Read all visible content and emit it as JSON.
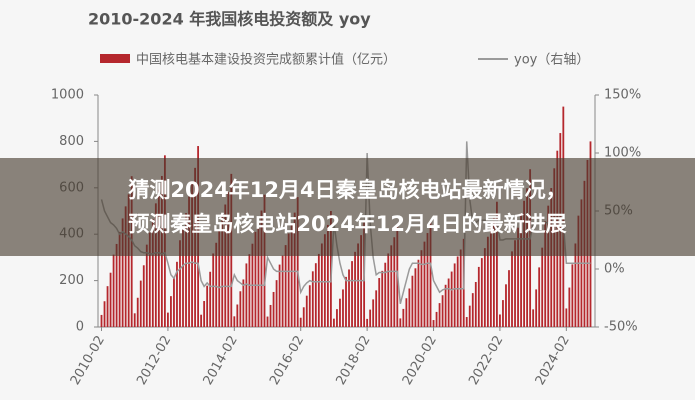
{
  "chart_data": {
    "type": "bar-line",
    "title": "2010-2024 年我国核电投资额及 yoy",
    "categories": [
      "2010-02",
      null,
      null,
      null,
      null,
      null,
      null,
      null,
      null,
      null,
      null,
      null,
      null,
      null,
      null,
      null,
      null,
      null,
      null,
      null,
      null,
      null,
      "2012-02",
      null,
      null,
      null,
      null,
      null,
      null,
      null,
      null,
      null,
      null,
      null,
      null,
      null,
      null,
      null,
      null,
      null,
      null,
      null,
      null,
      null,
      "2014-02",
      null,
      null,
      null,
      null,
      null,
      null,
      null,
      null,
      null,
      null,
      null,
      null,
      null,
      null,
      null,
      null,
      null,
      null,
      null,
      null,
      null,
      "2016-02",
      null,
      null,
      null,
      null,
      null,
      null,
      null,
      null,
      null,
      null,
      null,
      null,
      null,
      null,
      null,
      null,
      null,
      null,
      null,
      null,
      null,
      "2018-02",
      null,
      null,
      null,
      null,
      null,
      null,
      null,
      null,
      null,
      null,
      null,
      null,
      null,
      null,
      null,
      null,
      null,
      null,
      null,
      null,
      null,
      "2020-02",
      null,
      null,
      null,
      null,
      null,
      null,
      null,
      null,
      null,
      null,
      null,
      null,
      null,
      null,
      null,
      null,
      null,
      null,
      null,
      null,
      null,
      "2022-02",
      null,
      null,
      null,
      null,
      null,
      null,
      null,
      null,
      null,
      null,
      null,
      null,
      null,
      null,
      null,
      null,
      null,
      null,
      null,
      null,
      null,
      "2024-02",
      null,
      null,
      null,
      null,
      null,
      null,
      null,
      null
    ],
    "series": [
      {
        "name": "中国核电基本建设投资完成额累计值（亿元）",
        "type": "bar",
        "color": "#b5272d",
        "values": [
          52,
          111,
          176,
          234,
          312,
          358,
          410,
          468,
          520,
          572,
          650,
          59,
          126,
          200,
          266,
          355,
          407,
          466,
          533,
          592,
          651,
          740,
          62,
          133,
          211,
          281,
          374,
          429,
          491,
          562,
          624,
          686,
          780,
          53,
          112,
          178,
          238,
          317,
          363,
          416,
          475,
          528,
          581,
          660,
          46,
          97,
          154,
          205,
          274,
          314,
          359,
          410,
          456,
          502,
          570,
          45,
          95,
          151,
          202,
          269,
          308,
          353,
          403,
          448,
          493,
          560,
          40,
          85,
          135,
          180,
          240,
          275,
          315,
          360,
          400,
          440,
          500,
          36,
          77,
          122,
          162,
          216,
          248,
          284,
          324,
          360,
          396,
          450,
          35,
          75,
          119,
          158,
          211,
          242,
          277,
          317,
          352,
          387,
          440,
          37,
          78,
          124,
          166,
          221,
          253,
          290,
          331,
          368,
          405,
          460,
          30,
          65,
          103,
          137,
          182,
          209,
          239,
          274,
          304,
          334,
          380,
          43,
          92,
          146,
          194,
          259,
          297,
          340,
          389,
          432,
          475,
          540,
          54,
          116,
          184,
          245,
          326,
          374,
          428,
          490,
          544,
          598,
          680,
          76,
          162,
          257,
          342,
          456,
          523,
          599,
          684,
          760,
          836,
          950,
          80,
          170,
          270,
          360,
          480,
          550,
          630,
          720,
          800
        ]
      },
      {
        "name": "yoy（右轴）",
        "type": "line",
        "axis": "y2",
        "color": "#9a9a9a",
        "values": [
          60,
          50,
          45,
          40,
          38,
          35,
          30,
          32,
          30,
          28,
          25,
          20,
          18,
          15,
          14,
          14,
          13,
          13,
          14,
          14,
          13,
          14,
          5,
          -5,
          -8,
          -2,
          0,
          3,
          5,
          5,
          6,
          5,
          5,
          -10,
          -15,
          -12,
          -15,
          -15,
          -15,
          -16,
          -15,
          -15,
          -15,
          -15,
          -5,
          -10,
          -12,
          -14,
          -13,
          -14,
          -14,
          -14,
          -14,
          -14,
          -14,
          10,
          5,
          0,
          -2,
          -2,
          -2,
          -2,
          -2,
          -2,
          -2,
          -2,
          -20,
          -15,
          -12,
          -10,
          -11,
          -11,
          -11,
          -11,
          -11,
          -11,
          -11,
          40,
          20,
          5,
          -5,
          -10,
          -10,
          -10,
          -10,
          -10,
          -10,
          -10,
          100,
          40,
          10,
          -5,
          -3,
          -3,
          -3,
          -2,
          -2,
          -2,
          -2,
          -30,
          -20,
          -10,
          0,
          5,
          5,
          5,
          4,
          4,
          5,
          5,
          -10,
          -15,
          -20,
          -18,
          -17,
          -17,
          -18,
          -17,
          -17,
          -17,
          -17,
          110,
          60,
          40,
          40,
          42,
          42,
          42,
          42,
          42,
          42,
          42,
          25,
          25,
          26,
          26,
          26,
          26,
          26,
          26,
          26,
          26,
          26,
          40,
          40,
          40,
          40,
          40,
          40,
          40,
          40,
          40,
          40,
          40,
          5,
          5,
          5,
          5,
          5,
          5,
          5,
          5,
          5
        ]
      }
    ],
    "ylim": [
      0,
      1000
    ],
    "yticks": [
      0,
      200,
      400,
      600,
      800,
      1000
    ],
    "y2lim": [
      -50,
      150
    ],
    "y2ticks": [
      {
        "value": -50,
        "label": "-50%"
      },
      {
        "value": 0,
        "label": "0%"
      },
      {
        "value": 50,
        "label": "50%"
      },
      {
        "value": 100,
        "label": "100%"
      },
      {
        "value": 150,
        "label": "150%"
      }
    ],
    "grid": false
  },
  "overlay": {
    "lines": [
      "猜测2024年12月4日秦皇岛核电站最新情况，",
      "预测秦皇岛核电站2024年12月4日的最新进展"
    ]
  }
}
